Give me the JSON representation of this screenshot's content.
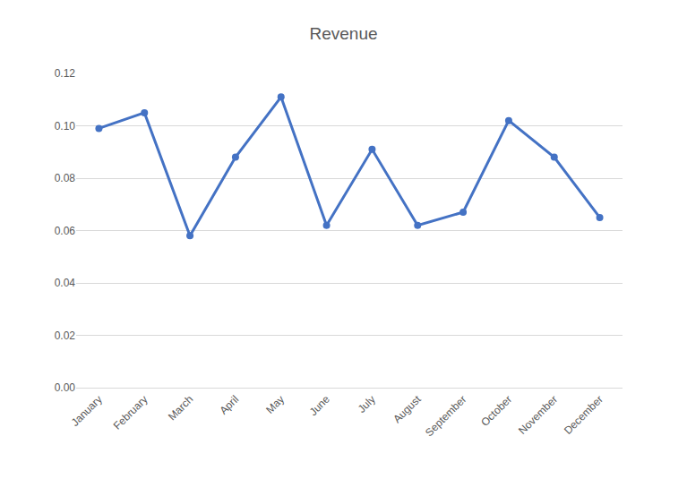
{
  "chart_data": {
    "type": "line",
    "title": "Revenue",
    "categories": [
      "January",
      "February",
      "March",
      "April",
      "May",
      "June",
      "July",
      "August",
      "September",
      "October",
      "November",
      "December"
    ],
    "values": [
      0.099,
      0.105,
      0.058,
      0.088,
      0.111,
      0.062,
      0.091,
      0.062,
      0.067,
      0.102,
      0.088,
      0.065
    ],
    "color": "#4472c4",
    "marker": "circle",
    "line_style": "solid",
    "ylim": [
      0,
      0.12
    ],
    "yticks": [
      {
        "value": 0,
        "label": "0.00"
      },
      {
        "value": 0.02,
        "label": "0.02"
      },
      {
        "value": 0.04,
        "label": "0.04"
      },
      {
        "value": 0.06,
        "label": "0.06"
      },
      {
        "value": 0.08,
        "label": "0.08"
      },
      {
        "value": 0.1,
        "label": "0.10"
      },
      {
        "value": 0.12,
        "label": "0.12"
      }
    ],
    "grid": true
  }
}
